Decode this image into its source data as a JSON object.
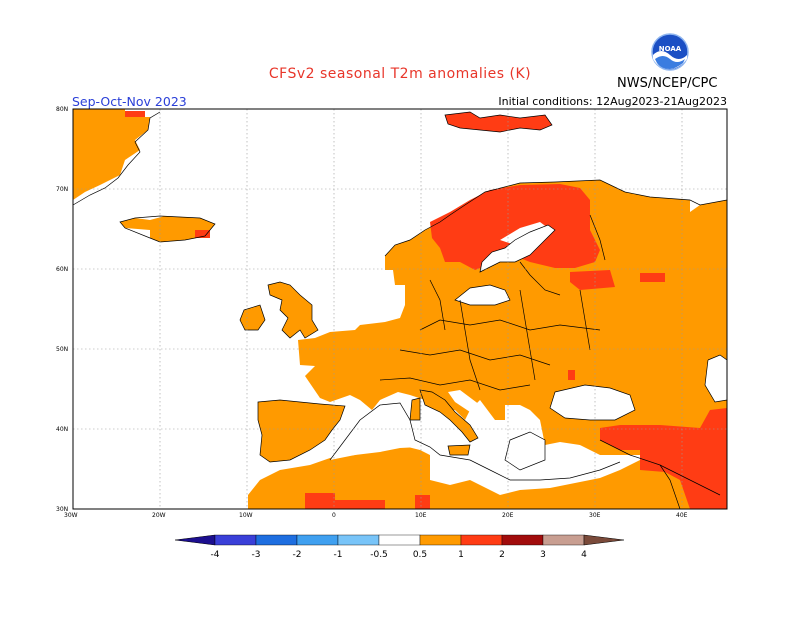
{
  "title": "CFSv2 seasonal T2m anomalies (K)",
  "period": "Sep-Oct-Nov 2023",
  "initial_conditions": "Initial conditions: 12Aug2023-21Aug2023",
  "agency": "NWS/NCEP/CPC",
  "logo_text": "NOAA",
  "lon_ticks": [
    "30W",
    "20W",
    "10W",
    "0",
    "10E",
    "20E",
    "30E",
    "40E"
  ],
  "lat_ticks": [
    "80N",
    "70N",
    "60N",
    "50N",
    "40N",
    "30N"
  ],
  "colorbar": {
    "labels": [
      "-4",
      "-3",
      "-2",
      "-1",
      "-0.5",
      "0.5",
      "1",
      "2",
      "3",
      "4"
    ],
    "colors": [
      "#1c0f8f",
      "#3a3fd8",
      "#1e6ee0",
      "#3fa0f0",
      "#78c4f8",
      "#ffffff",
      "#ff9a00",
      "#ff3c14",
      "#a10c0c",
      "#c89e91",
      "#7a4a3a"
    ]
  },
  "legend_colors": {
    "anom_05_1": "#ff9a00",
    "anom_1_2": "#ff3c14",
    "land_outline": "#000000"
  }
}
